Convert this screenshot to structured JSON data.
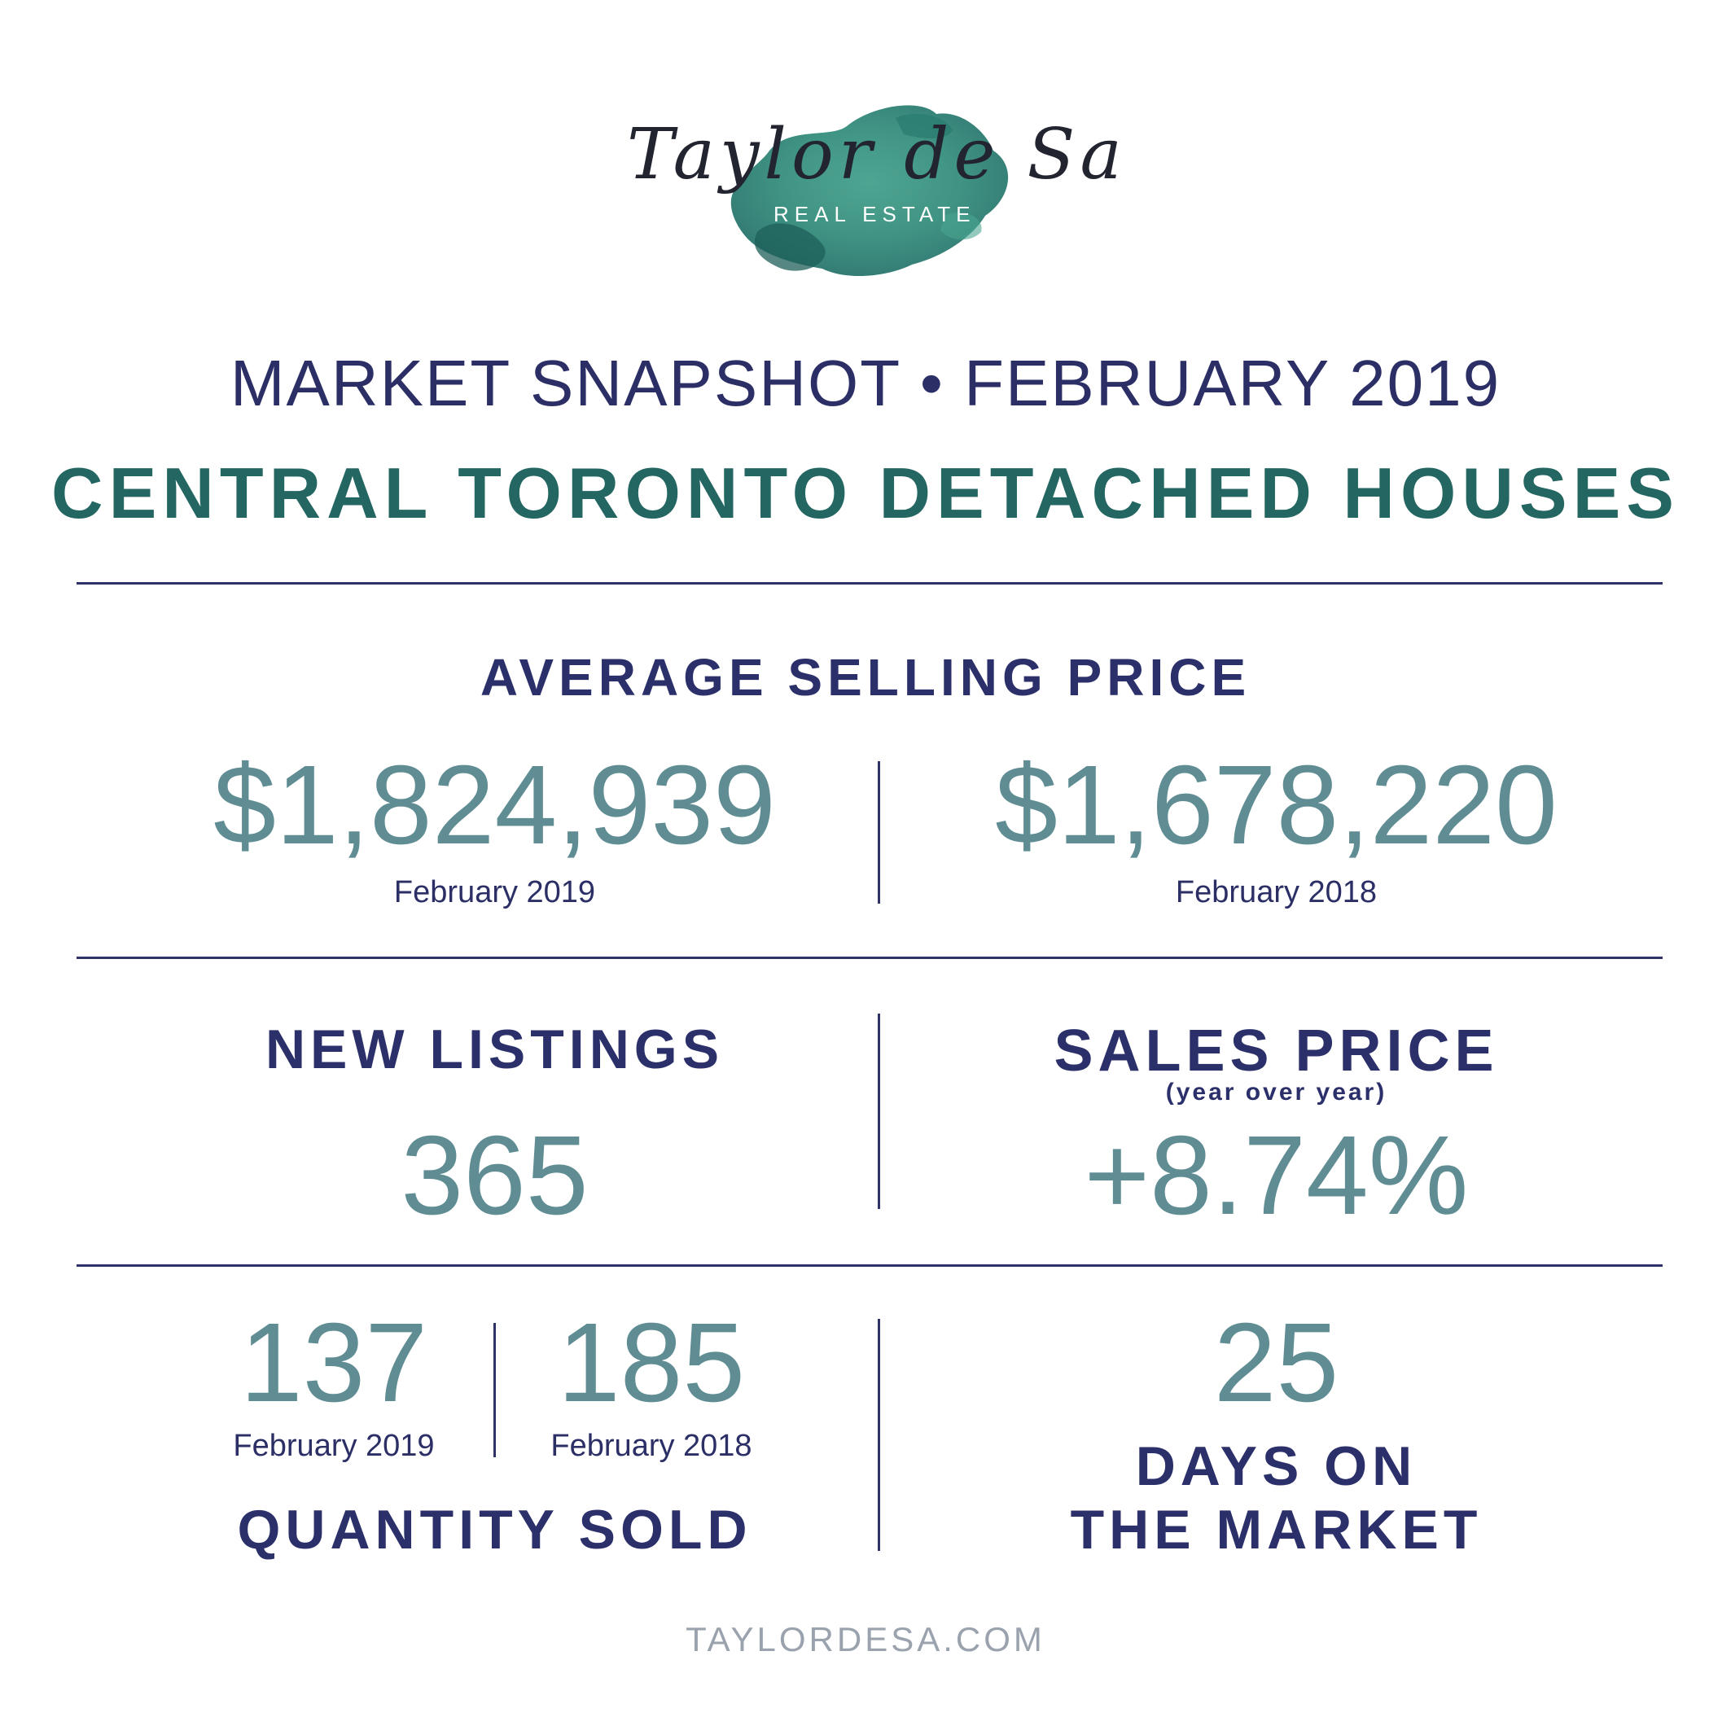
{
  "logo": {
    "script_text": "Taylor de Sa",
    "subtitle": "REAL ESTATE",
    "watercolor_color": "#2f8a78"
  },
  "header": {
    "snapshot": "MARKET SNAPSHOT • FEBRUARY 2019",
    "title": "CENTRAL TORONTO DETACHED HOUSES"
  },
  "average_selling_price": {
    "label": "AVERAGE SELLING PRICE",
    "current": {
      "value": "$1,824,939",
      "period": "February 2019"
    },
    "previous": {
      "value": "$1,678,220",
      "period": "February 2018"
    }
  },
  "new_listings": {
    "label": "NEW LISTINGS",
    "value": "365"
  },
  "sales_price": {
    "label": "SALES PRICE",
    "sublabel": "(year over year)",
    "value": "+8.74%"
  },
  "quantity_sold": {
    "label": "QUANTITY SOLD",
    "current": {
      "value": "137",
      "period": "February 2019"
    },
    "previous": {
      "value": "185",
      "period": "February 2018"
    }
  },
  "days_on_market": {
    "value": "25",
    "label_line1": "DAYS ON",
    "label_line2": "THE MARKET"
  },
  "footer": {
    "url": "TAYLORDESA.COM"
  },
  "colors": {
    "navy": "#2b2f6a",
    "teal_title": "#236662",
    "number_teal": "#5f8d93",
    "footer_grey": "#9aa2ad"
  }
}
